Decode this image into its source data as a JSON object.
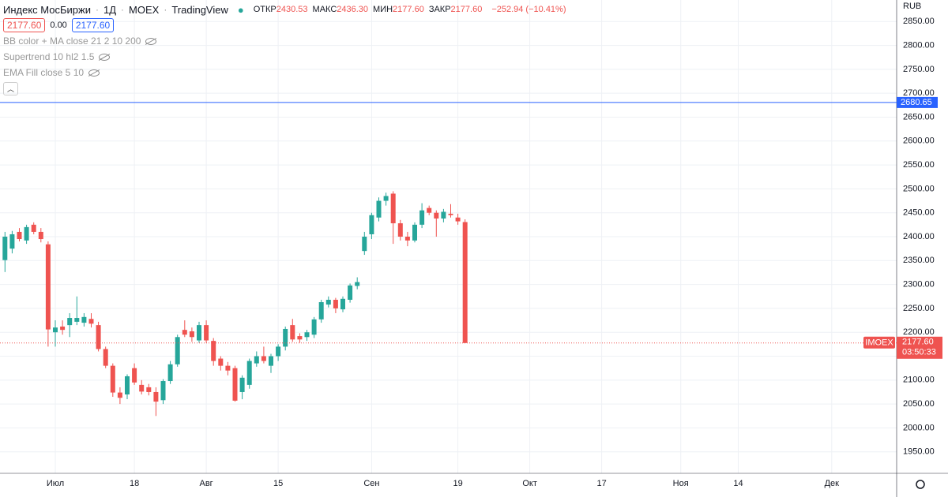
{
  "header": {
    "symbol": "Индекс МосБиржи",
    "interval": "1Д",
    "exchange": "MOEX",
    "source": "TradingView",
    "ohlc": [
      {
        "label": "ОТКР",
        "value": "2430.53"
      },
      {
        "label": "МАКС",
        "value": "2436.30"
      },
      {
        "label": "МИН",
        "value": "2177.60"
      },
      {
        "label": "ЗАКР",
        "value": "2177.60"
      }
    ],
    "change": "−252.94 (−10.41%)",
    "price_boxes": [
      "2177.60",
      "0.00",
      "2177.60"
    ],
    "indicators": [
      "BB color + MA close 21 2 10 200",
      "Supertrend 10 hl2 1.5",
      "EMA Fill close 5 10"
    ],
    "currency": "RUB"
  },
  "chart_data": {
    "type": "candlestick",
    "categories": [
      null,
      null,
      null,
      null,
      null,
      null,
      null,
      "Июл",
      null,
      null,
      null,
      null,
      null,
      null,
      null,
      null,
      null,
      null,
      "18",
      null,
      null,
      null,
      null,
      null,
      null,
      null,
      null,
      null,
      "Авг",
      null,
      null,
      null,
      null,
      null,
      null,
      null,
      null,
      null,
      "15",
      null,
      null,
      null,
      null,
      null,
      null,
      null,
      null,
      null,
      null,
      null,
      null,
      "Сен",
      null,
      null,
      null,
      null,
      null,
      null,
      null,
      null,
      null,
      null,
      null,
      "19",
      null,
      null,
      null,
      null,
      null,
      null,
      null,
      null,
      null,
      "Окт",
      null,
      null,
      null,
      null,
      null,
      null,
      null,
      null,
      null,
      "17",
      null,
      null,
      null,
      null,
      null,
      null,
      null,
      null,
      null,
      null,
      "Ноя",
      null,
      null,
      null,
      null,
      null,
      null,
      null,
      "14",
      null,
      null,
      null,
      null,
      null,
      null,
      null,
      null,
      null,
      null,
      null,
      null,
      "Дек",
      null,
      null,
      null,
      null,
      null,
      null,
      null,
      null,
      null
    ],
    "open": [
      2351,
      2375,
      2410,
      2392,
      2425,
      2410,
      2384,
      2200,
      2212,
      2215,
      2222,
      2220,
      2228,
      2215,
      2165,
      2130,
      2074,
      2070,
      2125,
      2090,
      2085,
      2075,
      2058,
      2098,
      2133,
      2205,
      2202,
      2183,
      2215,
      2182,
      2145,
      2130,
      2125,
      2075,
      2090,
      2135,
      2150,
      2130,
      2150,
      2170,
      2215,
      2192,
      2190,
      2195,
      2227,
      2258,
      2268,
      2248,
      2268,
      2297,
      2370,
      2405,
      2440,
      2475,
      2490,
      2428,
      2400,
      2392,
      2425,
      2460,
      2450,
      2438,
      2448,
      2440,
      2430.53,
      null,
      null,
      null,
      null,
      null,
      null,
      null,
      null,
      null,
      null,
      null,
      null,
      null,
      null,
      null,
      null,
      null,
      null,
      null,
      null,
      null,
      null,
      null,
      null,
      null,
      null,
      null,
      null,
      null,
      null,
      null,
      null,
      null,
      null,
      null,
      null,
      null,
      null,
      null,
      null,
      null,
      null,
      null,
      null,
      null,
      null,
      null,
      null,
      null,
      null,
      null,
      null,
      null,
      null,
      null,
      null,
      null,
      null,
      null,
      null
    ],
    "high": [
      2410,
      2412,
      2418,
      2425,
      2430,
      2418,
      2390,
      2225,
      2225,
      2240,
      2275,
      2240,
      2240,
      2222,
      2170,
      2135,
      2085,
      2112,
      2135,
      2100,
      2092,
      2085,
      2102,
      2140,
      2195,
      2225,
      2210,
      2222,
      2225,
      2188,
      2150,
      2138,
      2130,
      2110,
      2145,
      2160,
      2170,
      2155,
      2175,
      2212,
      2228,
      2198,
      2205,
      2232,
      2268,
      2275,
      2272,
      2275,
      2302,
      2315,
      2410,
      2450,
      2482,
      2492,
      2495,
      2435,
      2410,
      2430,
      2470,
      2465,
      2455,
      2458,
      2468,
      2448,
      2436.3,
      null,
      null,
      null,
      null,
      null,
      null,
      null,
      null,
      null,
      null,
      null,
      null,
      null,
      null,
      null,
      null,
      null,
      null,
      null,
      null,
      null,
      null,
      null,
      null,
      null,
      null,
      null,
      null,
      null,
      null,
      null,
      null,
      null,
      null,
      null,
      null,
      null,
      null,
      null,
      null,
      null,
      null,
      null,
      null,
      null,
      null,
      null,
      null,
      null,
      null,
      null,
      null,
      null,
      null,
      null,
      null,
      null,
      null,
      null,
      null
    ],
    "low": [
      2326,
      2365,
      2390,
      2385,
      2405,
      2388,
      2170,
      2170,
      2195,
      2190,
      2215,
      2212,
      2210,
      2160,
      2125,
      2065,
      2050,
      2060,
      2090,
      2070,
      2068,
      2025,
      2050,
      2092,
      2128,
      2190,
      2180,
      2178,
      2178,
      2130,
      2120,
      2110,
      2055,
      2060,
      2082,
      2128,
      2135,
      2115,
      2140,
      2162,
      2180,
      2178,
      2182,
      2188,
      2220,
      2252,
      2240,
      2242,
      2262,
      2290,
      2362,
      2395,
      2432,
      2465,
      2385,
      2392,
      2380,
      2388,
      2418,
      2445,
      2400,
      2430,
      2440,
      2425,
      2177.6,
      null,
      null,
      null,
      null,
      null,
      null,
      null,
      null,
      null,
      null,
      null,
      null,
      null,
      null,
      null,
      null,
      null,
      null,
      null,
      null,
      null,
      null,
      null,
      null,
      null,
      null,
      null,
      null,
      null,
      null,
      null,
      null,
      null,
      null,
      null,
      null,
      null,
      null,
      null,
      null,
      null,
      null,
      null,
      null,
      null,
      null,
      null,
      null,
      null,
      null,
      null,
      null,
      null,
      null,
      null,
      null,
      null,
      null,
      null,
      null
    ],
    "close": [
      2400,
      2405,
      2395,
      2420,
      2410,
      2395,
      2206,
      2210,
      2205,
      2230,
      2230,
      2232,
      2218,
      2165,
      2130,
      2074,
      2063,
      2108,
      2095,
      2076,
      2075,
      2055,
      2098,
      2133,
      2190,
      2195,
      2190,
      2215,
      2183,
      2140,
      2130,
      2120,
      2057,
      2105,
      2140,
      2150,
      2140,
      2150,
      2170,
      2207,
      2185,
      2185,
      2200,
      2227,
      2263,
      2268,
      2250,
      2270,
      2298,
      2305,
      2400,
      2445,
      2475,
      2485,
      2428,
      2400,
      2392,
      2425,
      2455,
      2450,
      2438,
      2452,
      2445,
      2432,
      2177.6,
      null,
      null,
      null,
      null,
      null,
      null,
      null,
      null,
      null,
      null,
      null,
      null,
      null,
      null,
      null,
      null,
      null,
      null,
      null,
      null,
      null,
      null,
      null,
      null,
      null,
      null,
      null,
      null,
      null,
      null,
      null,
      null,
      null,
      null,
      null,
      null,
      null,
      null,
      null,
      null,
      null,
      null,
      null,
      null,
      null,
      null,
      null,
      null,
      null,
      null,
      null,
      null,
      null,
      null,
      null,
      null,
      null,
      null,
      null,
      null
    ],
    "up_color": "#26a69a",
    "down_color": "#ef5350",
    "ylim": [
      1905,
      2895
    ],
    "yticks": [
      {
        "value": 1950,
        "label": "1950.00"
      },
      {
        "value": 2000,
        "label": "2000.00"
      },
      {
        "value": 2050,
        "label": "2050.00"
      },
      {
        "value": 2100,
        "label": "2100.00"
      },
      {
        "value": 2150,
        "label": "2150.00"
      },
      {
        "value": 2200,
        "label": "2200.00"
      },
      {
        "value": 2250,
        "label": "2250.00"
      },
      {
        "value": 2300,
        "label": "2300.00"
      },
      {
        "value": 2350,
        "label": "2350.00"
      },
      {
        "value": 2400,
        "label": "2400.00"
      },
      {
        "value": 2450,
        "label": "2450.00"
      },
      {
        "value": 2500,
        "label": "2500.00"
      },
      {
        "value": 2550,
        "label": "2550.00"
      },
      {
        "value": 2600,
        "label": "2600.00"
      },
      {
        "value": 2650,
        "label": "2650.00"
      },
      {
        "value": 2700,
        "label": "2700.00"
      },
      {
        "value": 2750,
        "label": "2750.00"
      },
      {
        "value": 2800,
        "label": "2800.00"
      },
      {
        "value": 2850,
        "label": "2850.00"
      }
    ],
    "grid": true,
    "price_line": {
      "value": 2680.65,
      "label": "2680.65",
      "color": "#2962ff"
    },
    "last_price": {
      "value": 2177.6,
      "label": "2177.60",
      "symbol": "IMOEX",
      "countdown": "03:50:33",
      "color": "#ef5350"
    }
  }
}
